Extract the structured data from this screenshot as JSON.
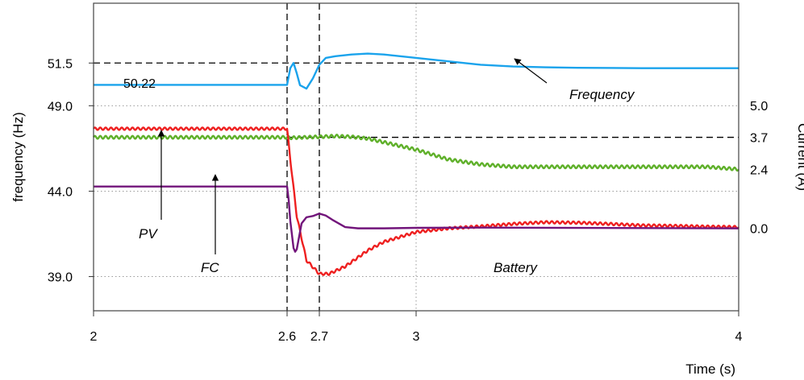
{
  "chart_data": {
    "type": "line",
    "title": "",
    "xlabel": "Time (s)",
    "ylabel_left": "frequency (Hz)",
    "ylabel_right": "Current (A)",
    "xlim": [
      2,
      4
    ],
    "ylim_left": [
      37,
      55
    ],
    "ylim_right": [
      -3.35,
      9.15
    ],
    "xticks": [
      "2",
      "2.6",
      "2.7",
      "3",
      "4"
    ],
    "xtick_values": [
      2,
      2.6,
      2.7,
      3,
      4
    ],
    "yticks_left": [
      "39.0",
      "44.0",
      "49.0",
      "51.5"
    ],
    "ytick_values_left": [
      39.0,
      44.0,
      49.0,
      51.5
    ],
    "yticks_right": [
      "0.0",
      "2.4",
      "3.7",
      "5.0"
    ],
    "ytick_values_right": [
      0.0,
      2.4,
      3.7,
      5.0
    ],
    "grid": {
      "x": [
        3
      ],
      "y": [
        39.0,
        44.0,
        49.0
      ]
    },
    "reference_lines": [
      {
        "axis": "left",
        "y": 51.5,
        "x_range": [
          2,
          3.15
        ]
      },
      {
        "axis": "right",
        "y": 3.7,
        "x_range": [
          2.6,
          4
        ]
      },
      {
        "axis": "x",
        "x": 2.6
      },
      {
        "axis": "x",
        "x": 2.7
      }
    ],
    "annotations": {
      "initial_freq": "50.22",
      "frequency": "Frequency",
      "pv": "PV",
      "fc": "FC",
      "battery": "Battery"
    },
    "series": [
      {
        "axis": "left",
        "color": "#1aa3ec",
        "ripple": 0,
        "x": [
          2.0,
          2.6,
          2.61,
          2.62,
          2.63,
          2.64,
          2.66,
          2.68,
          2.7,
          2.72,
          2.75,
          2.8,
          2.85,
          2.9,
          3.0,
          3.1,
          3.2,
          3.3,
          3.4,
          3.5,
          3.7,
          3.9,
          4.0
        ],
        "values": [
          50.22,
          50.22,
          51.2,
          51.5,
          50.9,
          50.2,
          50.0,
          50.6,
          51.4,
          51.8,
          51.9,
          52.0,
          52.05,
          52.0,
          51.8,
          51.6,
          51.4,
          51.3,
          51.25,
          51.22,
          51.2,
          51.2,
          51.2
        ]
      },
      {
        "axis": "right",
        "color": "#5fb02a",
        "ripple": 0.06,
        "x": [
          2.0,
          2.6,
          2.61,
          2.7,
          2.75,
          2.8,
          2.85,
          2.9,
          2.95,
          3.0,
          3.05,
          3.1,
          3.2,
          3.3,
          3.5,
          3.7,
          3.9,
          4.0
        ],
        "values": [
          3.7,
          3.7,
          3.68,
          3.72,
          3.75,
          3.72,
          3.65,
          3.5,
          3.35,
          3.2,
          3.0,
          2.8,
          2.6,
          2.5,
          2.5,
          2.5,
          2.5,
          2.4
        ]
      },
      {
        "axis": "right",
        "color": "#ee2020",
        "ripple": 0.05,
        "x": [
          2.0,
          2.6,
          2.61,
          2.63,
          2.66,
          2.7,
          2.73,
          2.78,
          2.85,
          2.9,
          3.0,
          3.1,
          3.2,
          3.3,
          3.4,
          3.5,
          3.6,
          3.7,
          3.8,
          3.9,
          4.0
        ],
        "values": [
          4.05,
          4.05,
          2.8,
          0.5,
          -1.3,
          -1.85,
          -1.85,
          -1.55,
          -0.9,
          -0.55,
          -0.15,
          0.0,
          0.08,
          0.18,
          0.25,
          0.23,
          0.18,
          0.12,
          0.1,
          0.07,
          0.05
        ]
      },
      {
        "axis": "right",
        "color": "#72157b",
        "ripple": 0,
        "x": [
          2.0,
          2.6,
          2.605,
          2.61,
          2.62,
          2.625,
          2.63,
          2.645,
          2.66,
          2.68,
          2.7,
          2.72,
          2.74,
          2.78,
          2.82,
          2.9,
          3.0,
          3.2,
          4.0
        ],
        "values": [
          1.7,
          1.7,
          1.15,
          0.3,
          -0.8,
          -0.95,
          -0.85,
          0.2,
          0.45,
          0.5,
          0.6,
          0.52,
          0.35,
          0.05,
          0.0,
          0.0,
          0.02,
          0.03,
          0.0
        ]
      }
    ]
  }
}
